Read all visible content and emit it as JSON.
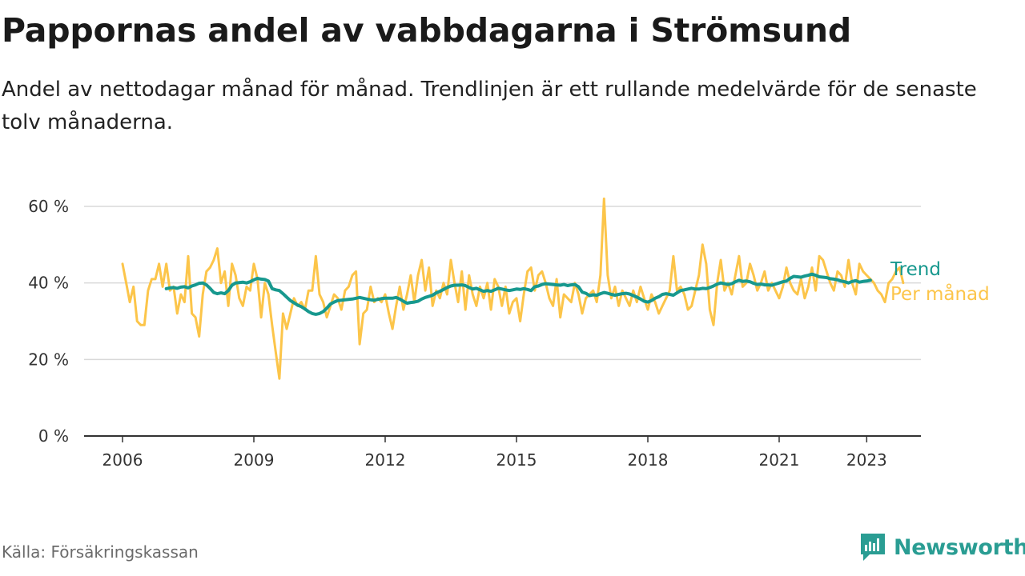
{
  "header": {
    "title": "Pappornas andel av vabbdagarna i Strömsund",
    "subtitle": "Andel av nettodagar månad för månad. Trendlinjen är ett rullande medelvärde för de senaste tolv månaderna."
  },
  "footer": {
    "source": "Källa: Försäkringskassan",
    "brand": "Newsworthy",
    "brand_icon": "newsworthy-logo-icon",
    "brand_color": "#2a9d93"
  },
  "chart_data": {
    "type": "line",
    "title": "Pappornas andel av vabbdagarna i Strömsund",
    "xlabel": "",
    "ylabel": "",
    "xlim": [
      2005.5,
      2024.25
    ],
    "ylim": [
      0,
      60
    ],
    "grid": true,
    "y_ticks": [
      0,
      20,
      40,
      60
    ],
    "y_tick_labels": [
      "0 %",
      "20 %",
      "40 %",
      "60 %"
    ],
    "x_ticks": [
      2006,
      2009,
      2012,
      2015,
      2018,
      2021,
      2023
    ],
    "x_tick_labels": [
      "2006",
      "2009",
      "2012",
      "2015",
      "2018",
      "2021",
      "2023"
    ],
    "legend": "right-end-labels",
    "series": [
      {
        "name": "Per månad",
        "color": "#fcc54a",
        "start": 2006.0,
        "step": 0.0833333,
        "values": [
          45,
          40,
          35,
          39,
          30,
          29,
          29,
          38,
          41,
          41,
          45,
          39,
          45,
          38,
          39,
          32,
          37,
          35,
          47,
          32,
          31,
          26,
          37,
          43,
          44,
          46,
          49,
          40,
          43,
          34,
          45,
          42,
          36,
          34,
          39,
          38,
          45,
          41,
          31,
          40,
          37,
          29,
          22,
          15,
          32,
          28,
          32,
          36,
          34,
          35,
          33,
          38,
          38,
          47,
          37,
          35,
          31,
          34,
          37,
          36,
          33,
          38,
          39,
          42,
          43,
          24,
          32,
          33,
          39,
          35,
          36,
          35,
          37,
          32,
          28,
          34,
          39,
          33,
          37,
          42,
          35,
          42,
          46,
          38,
          44,
          34,
          38,
          36,
          40,
          37,
          46,
          40,
          35,
          43,
          33,
          42,
          37,
          34,
          39,
          36,
          40,
          33,
          41,
          39,
          34,
          39,
          32,
          35,
          36,
          30,
          37,
          43,
          44,
          38,
          42,
          43,
          40,
          36,
          34,
          41,
          31,
          37,
          36,
          35,
          40,
          37,
          32,
          36,
          37,
          38,
          35,
          42,
          62,
          42,
          36,
          39,
          34,
          38,
          36,
          34,
          38,
          35,
          39,
          36,
          33,
          37,
          35,
          32,
          34,
          36,
          38,
          47,
          38,
          39,
          37,
          33,
          34,
          38,
          42,
          50,
          45,
          33,
          29,
          40,
          46,
          38,
          40,
          37,
          42,
          47,
          39,
          40,
          45,
          42,
          38,
          40,
          43,
          38,
          40,
          38,
          36,
          39,
          44,
          40,
          38,
          37,
          41,
          36,
          39,
          44,
          38,
          47,
          46,
          43,
          40,
          38,
          43,
          42,
          39,
          46,
          40,
          37,
          45,
          43,
          42,
          41,
          40,
          38,
          37,
          35,
          40,
          41,
          43,
          44,
          40
        ]
      },
      {
        "name": "Trend",
        "color": "#17988e",
        "start": 2007.0,
        "step": 0.0833333,
        "values": [
          38.5,
          38.7,
          38.8,
          38.6,
          38.9,
          39.0,
          38.7,
          39.2,
          39.5,
          39.9,
          40.0,
          39.5,
          38.6,
          37.5,
          37.2,
          37.4,
          37.2,
          38.0,
          39.4,
          40.0,
          40.1,
          40.2,
          40.0,
          40.3,
          40.8,
          41.2,
          41.0,
          40.9,
          40.5,
          38.5,
          38.2,
          38.0,
          37.2,
          36.3,
          35.4,
          34.8,
          34.2,
          33.8,
          33.2,
          32.5,
          32.0,
          31.8,
          32.0,
          32.5,
          33.4,
          34.5,
          35.0,
          35.4,
          35.5,
          35.6,
          35.7,
          35.8,
          36.0,
          36.2,
          36.0,
          35.8,
          35.6,
          35.5,
          35.7,
          35.9,
          36.0,
          36.0,
          36.0,
          36.2,
          35.8,
          35.2,
          34.7,
          34.9,
          35.0,
          35.2,
          35.8,
          36.2,
          36.5,
          36.8,
          37.4,
          37.8,
          38.3,
          38.8,
          39.2,
          39.4,
          39.4,
          39.5,
          39.3,
          38.8,
          38.4,
          38.6,
          38.2,
          37.8,
          38.0,
          37.8,
          38.2,
          38.6,
          38.4,
          38.2,
          38.0,
          38.2,
          38.4,
          38.3,
          38.5,
          38.3,
          38.0,
          39.0,
          39.2,
          39.6,
          39.8,
          39.7,
          39.6,
          39.5,
          39.4,
          39.6,
          39.3,
          39.5,
          39.6,
          39.0,
          37.6,
          37.3,
          36.7,
          36.9,
          36.8,
          37.2,
          37.5,
          37.3,
          37.0,
          36.8,
          37.0,
          37.2,
          37.3,
          37.1,
          36.7,
          36.3,
          35.8,
          35.2,
          35.0,
          35.4,
          36.0,
          36.4,
          37.0,
          37.2,
          37.0,
          36.8,
          37.4,
          38.0,
          38.2,
          38.4,
          38.6,
          38.4,
          38.4,
          38.6,
          38.5,
          38.8,
          39.2,
          39.7,
          40.0,
          39.8,
          39.6,
          39.8,
          40.3,
          40.7,
          40.4,
          40.5,
          40.3,
          39.9,
          39.6,
          39.7,
          39.5,
          39.5,
          39.4,
          39.7,
          40.0,
          40.3,
          40.5,
          41.2,
          41.7,
          41.6,
          41.5,
          41.8,
          42.0,
          42.3,
          42.0,
          41.6,
          41.5,
          41.4,
          41.1,
          41.0,
          40.8,
          40.5,
          40.3,
          40.0,
          40.4,
          40.6,
          40.2,
          40.4,
          40.5,
          40.7
        ]
      }
    ]
  }
}
